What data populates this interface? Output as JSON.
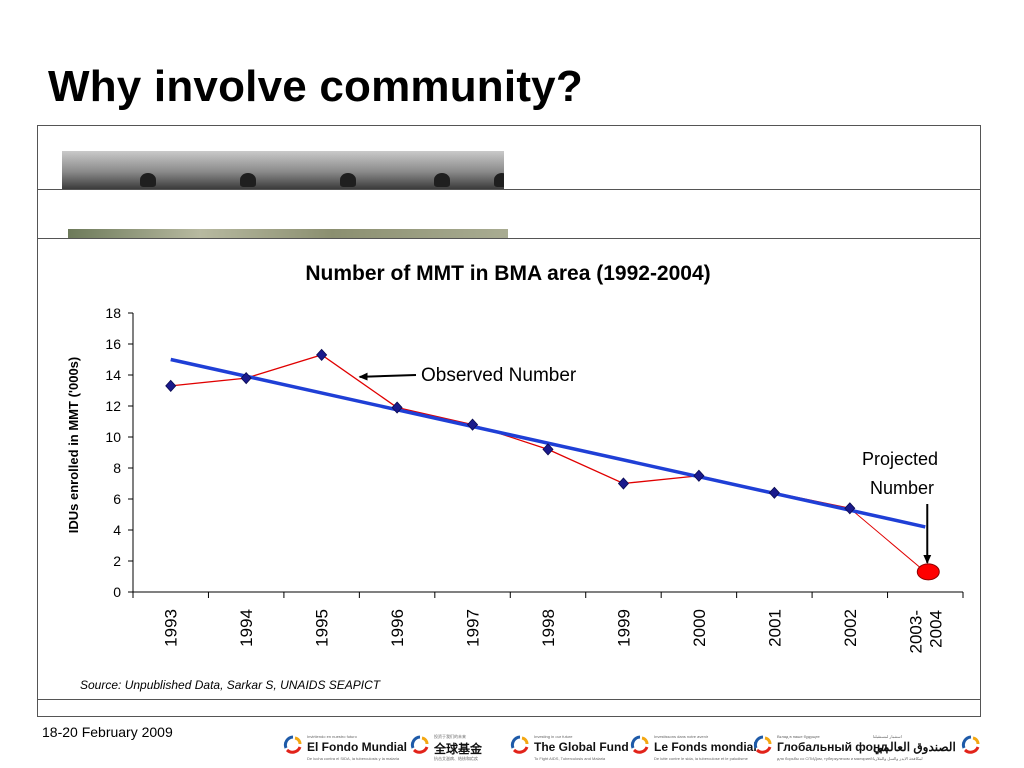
{
  "slide": {
    "title": "Why involve community?",
    "footer_date": "18-20 February 2009"
  },
  "logos": [
    {
      "sub": "Invirtiendo en nuestro futuro",
      "name": "El Fondo Mundial",
      "fine": "De lucha contra el SIDA, la tuberculosis y la malaria"
    },
    {
      "sub": "投资于我们的未来",
      "name": "全球基金",
      "fine": "抗击艾滋病、结核和疟疾"
    },
    {
      "sub": "Investing in our future",
      "name": "The Global Fund",
      "fine": "To Fight AIDS, Tuberculosis and Malaria"
    },
    {
      "sub": "Investissons dans notre avenir",
      "name": "Le Fonds mondial",
      "fine": "De lutte contre le sida, la tuberculose et le paludisme"
    },
    {
      "sub": "Вклад в наше будущее",
      "name": "Глобальный фонд",
      "fine": "для борьбы со СПИДом, туберкулезом и малярией"
    },
    {
      "sub": "استثمار لمستقبلنا",
      "name": "الصندوق العالمي",
      "fine": "لمكافحة الايدز والسل والملاريا"
    }
  ],
  "chart_data": {
    "type": "line",
    "title": "Number of MMT in  BMA area (1992-2004)",
    "xlabel": "",
    "ylabel": "IDUs enrolled in MMT ('000s)",
    "categories": [
      "1993",
      "1994",
      "1995",
      "1996",
      "1997",
      "1998",
      "1999",
      "2000",
      "2001",
      "2002",
      "2003-2004"
    ],
    "ylim": [
      0,
      18
    ],
    "yticks": [
      "0",
      "2",
      "4",
      "6",
      "8",
      "10",
      "12",
      "14",
      "16",
      "18"
    ],
    "series": [
      {
        "values": [
          13.3,
          13.8,
          15.3,
          11.9,
          10.8,
          9.2,
          7.0,
          7.5,
          6.4,
          5.4,
          null
        ],
        "color": "#e00000",
        "marker": "diamond",
        "marker_color": "#1a1a8c"
      },
      {
        "kind": "trendline",
        "values": [
          15.0,
          13.9,
          12.8,
          11.8,
          10.7,
          9.6,
          8.5,
          7.4,
          6.3,
          5.2,
          4.2
        ],
        "color": "#1f3fd6"
      },
      {
        "kind": "projection",
        "values": [
          null,
          null,
          null,
          null,
          null,
          null,
          null,
          null,
          null,
          5.4,
          1.3
        ],
        "color": "#e00000",
        "marker": "ellipse",
        "marker_color": "#ff0000"
      }
    ],
    "annotations": {
      "observed": "Observed Number",
      "projected_line1": "Projected",
      "projected_line2": "Number"
    },
    "source": "Source: Unpublished Data, Sarkar S,  UNAIDS SEAPICT"
  }
}
